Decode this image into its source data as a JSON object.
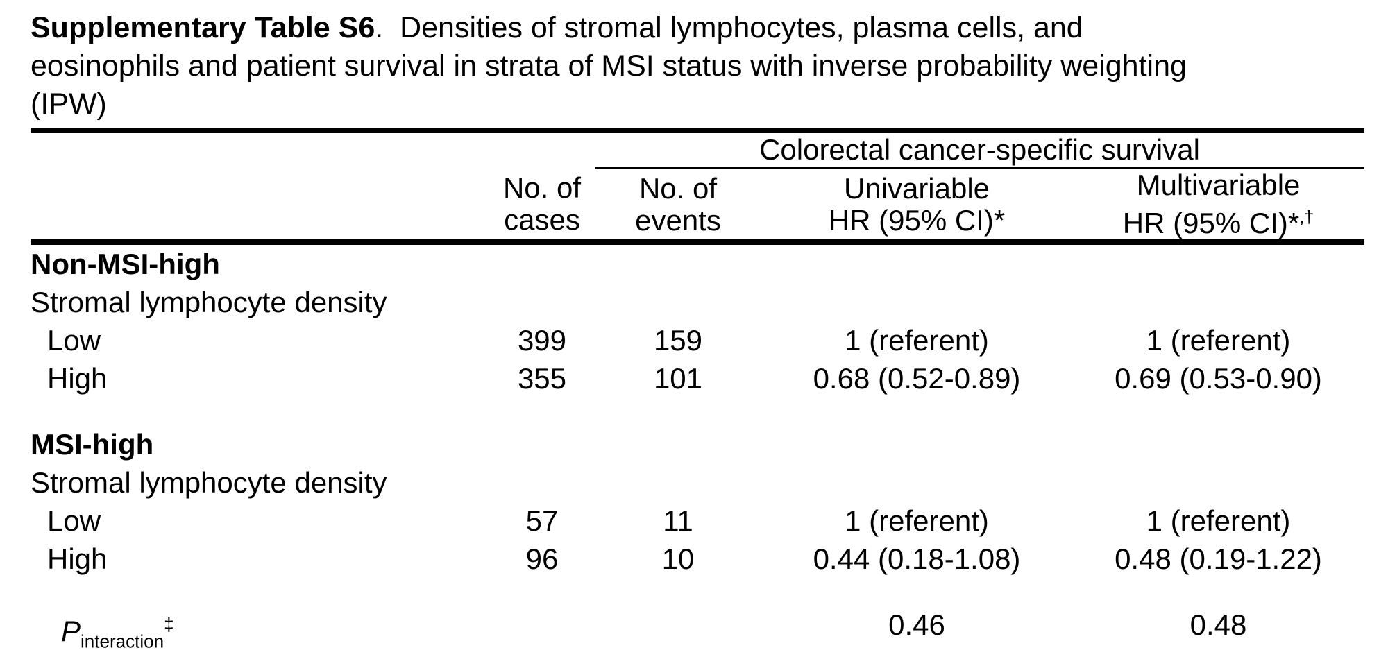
{
  "colors": {
    "text": "#000000",
    "background": "#ffffff"
  },
  "title": {
    "line1_bold": "Supplementary Table S6",
    "line1_rest": ".  Densities of stromal lymphocytes, plasma cells, and",
    "line2": "eosinophils and patient survival in strata of MSI status with inverse probability weighting",
    "line3": "(IPW)"
  },
  "table": {
    "span_header": "Colorectal cancer-specific survival",
    "col_headers": {
      "cases_line1": "No. of",
      "cases_line2": "cases",
      "events_line1": "No. of",
      "events_line2": "events",
      "uni_line1": "Univariable",
      "uni_line2": "HR (95% CI)*",
      "multi_line1": "Multivariable",
      "multi_line2": "HR (95% CI)*",
      "multi_line2_sup": ",†"
    },
    "rows": [
      {
        "label": "Non-MSI-high"
      },
      {
        "label": "Stromal lymphocyte density"
      },
      {
        "label": "Low",
        "cases": "399",
        "events": "159",
        "uni": "1 (referent)",
        "multi": "1 (referent)"
      },
      {
        "label": "High",
        "cases": "355",
        "events": "101",
        "uni": "0.68 (0.52-0.89)",
        "multi": "0.69 (0.53-0.90)"
      },
      {
        "label": "MSI-high"
      },
      {
        "label": "Stromal lymphocyte density"
      },
      {
        "label": "Low",
        "cases": "57",
        "events": "11",
        "uni": "1 (referent)",
        "multi": "1 (referent)"
      },
      {
        "label": "High",
        "cases": "96",
        "events": "10",
        "uni": "0.44 (0.18-1.08)",
        "multi": "0.48 (0.19-1.22)"
      }
    ],
    "p_row": {
      "p": "P",
      "sub": "interaction",
      "sup": "‡",
      "uni": "0.46",
      "multi": "0.48"
    }
  }
}
